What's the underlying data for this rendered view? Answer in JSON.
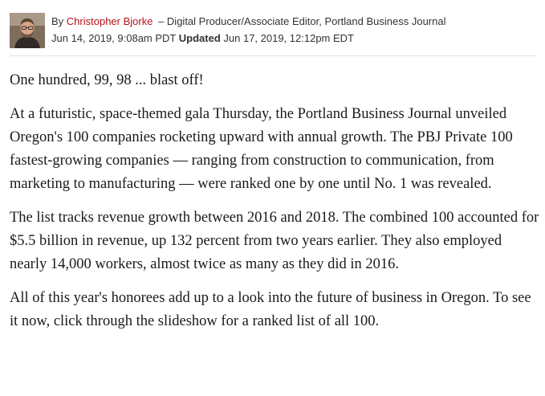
{
  "byline": {
    "by": "By",
    "author": "Christopher Bjorke",
    "role": "– Digital Producer/Associate Editor, Portland Business Journal",
    "published": "Jun 14, 2019, 9:08am PDT",
    "updated_label": "Updated",
    "updated": "Jun 17, 2019, 12:12pm EDT"
  },
  "article": {
    "paragraphs": [
      "One hundred, 99, 98 ... blast off!",
      "At a futuristic, space-themed gala Thursday, the Portland Business Journal unveiled Oregon's 100 companies rocketing upward with annual growth. The PBJ Private 100 fastest-growing companies — ranging from construction to communication, from marketing to manufacturing — were ranked one by one until No. 1 was revealed.",
      "The list tracks revenue growth between 2016 and 2018. The combined 100 accounted for $5.5 billion in revenue, up 132 percent from two years earlier. They also employed nearly 14,000 workers, almost twice as many as they did in 2016.",
      "All of this year's honorees add up to a look into the future of business in Oregon. To see it now, click through the slideshow for a ranked list of all 100."
    ]
  },
  "colors": {
    "author_link": "#b5121b",
    "body_text": "#1a1a1a",
    "byline_text": "#333333"
  }
}
